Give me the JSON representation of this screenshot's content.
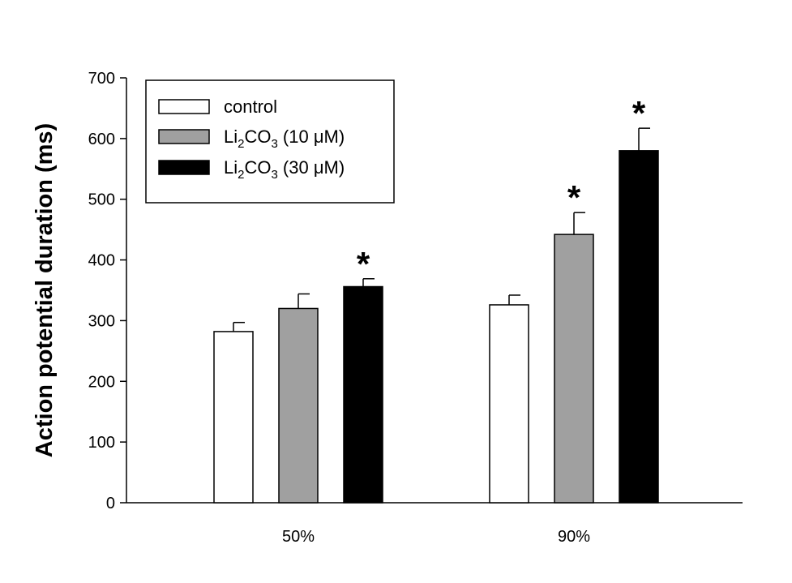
{
  "chart_data": {
    "type": "bar",
    "title": "",
    "xlabel": "",
    "ylabel": "Action potential duration (ms)",
    "ylim": [
      0,
      700
    ],
    "yticks": [
      0,
      100,
      200,
      300,
      400,
      500,
      600,
      700
    ],
    "categories": [
      "50%",
      "90%"
    ],
    "series": [
      {
        "name": "control",
        "values": [
          282,
          326
        ],
        "errors": [
          15,
          16
        ],
        "significant": [
          false,
          false
        ],
        "color": "#ffffff"
      },
      {
        "name": "Li2CO3 (10 μM)",
        "values": [
          320,
          442
        ],
        "errors": [
          24,
          36
        ],
        "significant": [
          false,
          true
        ],
        "color": "#a0a0a0"
      },
      {
        "name": "Li2CO3 (30 μM)",
        "values": [
          356,
          580
        ],
        "errors": [
          13,
          37
        ],
        "significant": [
          true,
          true
        ],
        "color": "#000000"
      }
    ],
    "significance_marker": "*",
    "legend": {
      "placement": "top-left",
      "entries": [
        {
          "text": "control"
        },
        {
          "prefix": "Li",
          "sub1": "2",
          "mid": "CO",
          "sub2": "3",
          "suffix": " (10 μM)"
        },
        {
          "prefix": "Li",
          "sub1": "2",
          "mid": "CO",
          "sub2": "3",
          "suffix": " (30 μM)"
        }
      ]
    },
    "grid": false
  }
}
